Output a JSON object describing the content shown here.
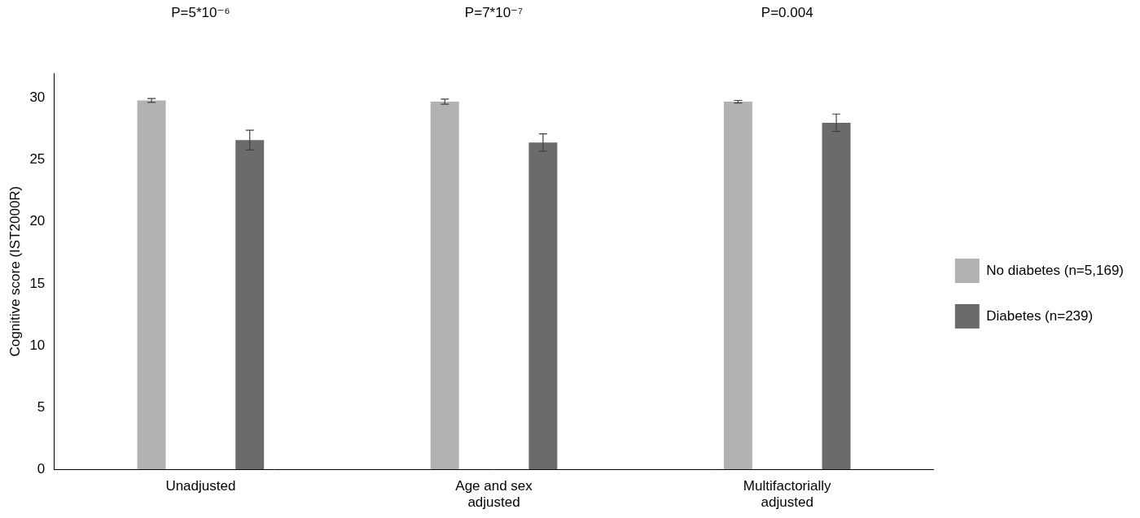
{
  "chart_data": {
    "type": "bar",
    "categories": [
      "Unadjusted",
      "Age and sex\nadjusted",
      "Multifactorially\nadjusted"
    ],
    "series": [
      {
        "name": "No diabetes (n=5,169)",
        "color": "#b2b2b2",
        "values": [
          29.8,
          29.7,
          29.7
        ],
        "errors": [
          0.15,
          0.2,
          0.1
        ]
      },
      {
        "name": "Diabetes (n=239)",
        "color": "#6b6b6b",
        "values": [
          26.6,
          26.4,
          28
        ],
        "errors": [
          0.8,
          0.7,
          0.7
        ]
      }
    ],
    "y_label": "Cognitive score (IST2000R)",
    "annotations": [
      "P=5*10⁻⁶",
      "P=7*10⁻⁷",
      "P=0.004"
    ],
    "ylim": [
      0,
      32
    ],
    "yticks": [
      0,
      5,
      10,
      15,
      20,
      25,
      30
    ],
    "grid": false,
    "legend": "right"
  }
}
